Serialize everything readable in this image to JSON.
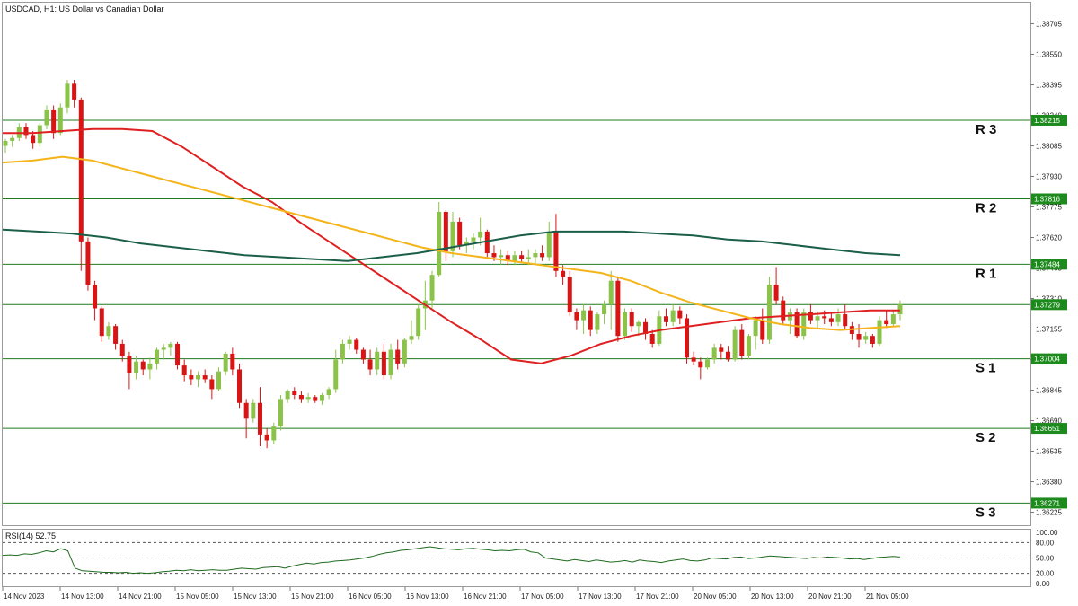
{
  "header": {
    "symbol_text": "USDCAD, H1:  US Dollar vs Canadian Dollar"
  },
  "rsi_panel": {
    "label": "RSI(14) 52.75"
  },
  "colors": {
    "bull": "#8bc34a",
    "bear": "#d81414",
    "level_line": "#1e7b1e",
    "badge": "#1d8a1d",
    "ma_fast": "#e02020",
    "ma_mid": "#f4b41a",
    "ma_slow": "#1b5e4a",
    "rsi_line": "#1f6b1f",
    "grid_border": "#9a9a9a"
  },
  "chart_data": [
    {
      "type": "candlestick",
      "title": "USDCAD, H1:  US Dollar vs Canadian Dollar",
      "x_tick_labels": [
        "14 Nov 2023",
        "14 Nov 13:00",
        "14 Nov 21:00",
        "15 Nov 05:00",
        "15 Nov 13:00",
        "15 Nov 21:00",
        "16 Nov 05:00",
        "16 Nov 13:00",
        "16 Nov 21:00",
        "17 Nov 05:00",
        "17 Nov 13:00",
        "17 Nov 21:00",
        "20 Nov 05:00",
        "20 Nov 13:00",
        "20 Nov 21:00",
        "21 Nov 05:00"
      ],
      "y_tick_labels": [
        "1.38705",
        "1.38550",
        "1.38395",
        "1.38240",
        "1.38085",
        "1.37930",
        "1.37775",
        "1.37620",
        "1.37465",
        "1.37310",
        "1.37155",
        "1.37000",
        "1.36845",
        "1.36690",
        "1.36535",
        "1.36380",
        "1.36225"
      ],
      "ylim": [
        1.36159,
        1.38812
      ],
      "levels": [
        {
          "name": "R 3",
          "value": 1.38215,
          "label": "1.38215"
        },
        {
          "name": "R 2",
          "value": 1.37816,
          "label": "1.37816"
        },
        {
          "name": "R 1",
          "value": 1.37484,
          "label": "1.37484"
        },
        {
          "name": "",
          "value": 1.37279,
          "label": "1.37279"
        },
        {
          "name": "S 1",
          "value": 1.37004,
          "label": "1.37004"
        },
        {
          "name": "S 2",
          "value": 1.36651,
          "label": "1.36651"
        },
        {
          "name": "S 3",
          "value": 1.36271,
          "label": "1.36271"
        }
      ],
      "ohlc": [
        [
          1.38085,
          1.3812,
          1.3805,
          1.3811
        ],
        [
          1.3811,
          1.3814,
          1.3808,
          1.38125
        ],
        [
          1.38125,
          1.382,
          1.3811,
          1.3818
        ],
        [
          1.3818,
          1.382,
          1.3812,
          1.3814
        ],
        [
          1.3814,
          1.3816,
          1.3807,
          1.381
        ],
        [
          1.381,
          1.382,
          1.3808,
          1.3819
        ],
        [
          1.3819,
          1.3829,
          1.3817,
          1.3827
        ],
        [
          1.3827,
          1.3829,
          1.3812,
          1.3815
        ],
        [
          1.3815,
          1.383,
          1.3814,
          1.3828
        ],
        [
          1.3828,
          1.3842,
          1.3825,
          1.384
        ],
        [
          1.384,
          1.3842,
          1.3828,
          1.3832
        ],
        [
          1.3832,
          1.3833,
          1.3745,
          1.376
        ],
        [
          1.376,
          1.3762,
          1.3735,
          1.3738
        ],
        [
          1.3738,
          1.374,
          1.372,
          1.3726
        ],
        [
          1.3726,
          1.3727,
          1.3709,
          1.3712
        ],
        [
          1.3712,
          1.3719,
          1.371,
          1.3717
        ],
        [
          1.3717,
          1.3718,
          1.3705,
          1.3708
        ],
        [
          1.3708,
          1.371,
          1.3699,
          1.3702
        ],
        [
          1.3702,
          1.3704,
          1.3685,
          1.3693
        ],
        [
          1.3693,
          1.3702,
          1.369,
          1.3699
        ],
        [
          1.3699,
          1.37,
          1.3692,
          1.3695
        ],
        [
          1.3695,
          1.3701,
          1.369,
          1.3698
        ],
        [
          1.3698,
          1.3706,
          1.3695,
          1.3705
        ],
        [
          1.3705,
          1.3708,
          1.37,
          1.3706
        ],
        [
          1.3706,
          1.3709,
          1.3702,
          1.3708
        ],
        [
          1.3708,
          1.3709,
          1.3695,
          1.3697
        ],
        [
          1.3697,
          1.37,
          1.3689,
          1.3692
        ],
        [
          1.3692,
          1.3695,
          1.3687,
          1.369
        ],
        [
          1.369,
          1.3694,
          1.3686,
          1.3692
        ],
        [
          1.3692,
          1.3695,
          1.3688,
          1.369
        ],
        [
          1.369,
          1.3692,
          1.368,
          1.3685
        ],
        [
          1.3685,
          1.3696,
          1.3684,
          1.3694
        ],
        [
          1.3694,
          1.3704,
          1.3692,
          1.3703
        ],
        [
          1.3703,
          1.3706,
          1.3692,
          1.3695
        ],
        [
          1.3695,
          1.3698,
          1.3675,
          1.3678
        ],
        [
          1.3678,
          1.368,
          1.366,
          1.367
        ],
        [
          1.367,
          1.368,
          1.3668,
          1.3678
        ],
        [
          1.3678,
          1.3686,
          1.3656,
          1.3662
        ],
        [
          1.3662,
          1.3665,
          1.3655,
          1.3659
        ],
        [
          1.3659,
          1.3668,
          1.3657,
          1.3666
        ],
        [
          1.3666,
          1.3682,
          1.3664,
          1.368
        ],
        [
          1.368,
          1.3685,
          1.3678,
          1.3684
        ],
        [
          1.3684,
          1.3686,
          1.368,
          1.3682
        ],
        [
          1.3682,
          1.3684,
          1.3678,
          1.368
        ],
        [
          1.368,
          1.3683,
          1.3678,
          1.3681
        ],
        [
          1.3681,
          1.3682,
          1.3678,
          1.3679
        ],
        [
          1.3679,
          1.3683,
          1.3677,
          1.3682
        ],
        [
          1.3682,
          1.3686,
          1.368,
          1.3685
        ],
        [
          1.3685,
          1.3705,
          1.3683,
          1.37
        ],
        [
          1.37,
          1.371,
          1.3698,
          1.3708
        ],
        [
          1.3708,
          1.3712,
          1.3705,
          1.371
        ],
        [
          1.371,
          1.3711,
          1.3703,
          1.3705
        ],
        [
          1.3705,
          1.3706,
          1.3698,
          1.37
        ],
        [
          1.37,
          1.3705,
          1.3692,
          1.3695
        ],
        [
          1.3695,
          1.3706,
          1.3692,
          1.3704
        ],
        [
          1.3704,
          1.3708,
          1.369,
          1.3692
        ],
        [
          1.3692,
          1.3708,
          1.369,
          1.3705
        ],
        [
          1.3705,
          1.371,
          1.3695,
          1.3698
        ],
        [
          1.3698,
          1.3711,
          1.3696,
          1.371
        ],
        [
          1.371,
          1.372,
          1.3708,
          1.3712
        ],
        [
          1.3712,
          1.3728,
          1.371,
          1.3726
        ],
        [
          1.3726,
          1.374,
          1.3715,
          1.373
        ],
        [
          1.373,
          1.3745,
          1.3726,
          1.3743
        ],
        [
          1.3743,
          1.378,
          1.3742,
          1.3775
        ],
        [
          1.3775,
          1.3776,
          1.375,
          1.3755
        ],
        [
          1.3755,
          1.3775,
          1.3752,
          1.377
        ],
        [
          1.377,
          1.3772,
          1.3756,
          1.3758
        ],
        [
          1.3758,
          1.3762,
          1.3754,
          1.376
        ],
        [
          1.376,
          1.3764,
          1.3756,
          1.3762
        ],
        [
          1.3762,
          1.3772,
          1.3758,
          1.3765
        ],
        [
          1.3765,
          1.3766,
          1.3752,
          1.3754
        ],
        [
          1.3754,
          1.3758,
          1.375,
          1.3752
        ],
        [
          1.3752,
          1.3756,
          1.3748,
          1.3753
        ],
        [
          1.3753,
          1.3755,
          1.3748,
          1.375
        ],
        [
          1.375,
          1.3755,
          1.3748,
          1.3753
        ],
        [
          1.3753,
          1.3755,
          1.3749,
          1.3751
        ],
        [
          1.3751,
          1.3756,
          1.3748,
          1.3752
        ],
        [
          1.3752,
          1.3756,
          1.3748,
          1.3754
        ],
        [
          1.3754,
          1.3758,
          1.375,
          1.3752
        ],
        [
          1.3752,
          1.377,
          1.375,
          1.3765
        ],
        [
          1.3765,
          1.3774,
          1.3742,
          1.3745
        ],
        [
          1.3745,
          1.3748,
          1.3738,
          1.3742
        ],
        [
          1.3742,
          1.3745,
          1.3722,
          1.3724
        ],
        [
          1.3724,
          1.3726,
          1.3715,
          1.372
        ],
        [
          1.372,
          1.3728,
          1.3713,
          1.3725
        ],
        [
          1.3725,
          1.3727,
          1.3712,
          1.3715
        ],
        [
          1.3715,
          1.3724,
          1.3713,
          1.3723
        ],
        [
          1.3723,
          1.373,
          1.3718,
          1.3728
        ],
        [
          1.3728,
          1.3745,
          1.3715,
          1.374
        ],
        [
          1.374,
          1.3742,
          1.3709,
          1.3712
        ],
        [
          1.3712,
          1.3726,
          1.371,
          1.3724
        ],
        [
          1.3724,
          1.3726,
          1.3714,
          1.3717
        ],
        [
          1.3717,
          1.372,
          1.3712,
          1.3719
        ],
        [
          1.3719,
          1.3721,
          1.371,
          1.3713
        ],
        [
          1.3713,
          1.3715,
          1.3706,
          1.3708
        ],
        [
          1.3708,
          1.3725,
          1.3707,
          1.3722
        ],
        [
          1.3722,
          1.3726,
          1.3717,
          1.3719
        ],
        [
          1.3719,
          1.3728,
          1.3717,
          1.3725
        ],
        [
          1.3725,
          1.3727,
          1.3718,
          1.3721
        ],
        [
          1.3721,
          1.3723,
          1.3698,
          1.3701
        ],
        [
          1.3701,
          1.3704,
          1.3697,
          1.3699
        ],
        [
          1.3699,
          1.3701,
          1.369,
          1.3696
        ],
        [
          1.3696,
          1.3701,
          1.3695,
          1.37
        ],
        [
          1.37,
          1.3708,
          1.3698,
          1.3706
        ],
        [
          1.3706,
          1.3708,
          1.37,
          1.3704
        ],
        [
          1.3704,
          1.3707,
          1.3699,
          1.37
        ],
        [
          1.37,
          1.3717,
          1.3699,
          1.3715
        ],
        [
          1.3715,
          1.3718,
          1.37,
          1.3702
        ],
        [
          1.3702,
          1.3713,
          1.37,
          1.3712
        ],
        [
          1.3712,
          1.3722,
          1.3705,
          1.372
        ],
        [
          1.372,
          1.3726,
          1.3708,
          1.371
        ],
        [
          1.371,
          1.3742,
          1.3708,
          1.3738
        ],
        [
          1.3738,
          1.3747,
          1.3728,
          1.373
        ],
        [
          1.373,
          1.3732,
          1.3718,
          1.372
        ],
        [
          1.372,
          1.3726,
          1.3713,
          1.3724
        ],
        [
          1.3724,
          1.3726,
          1.3711,
          1.3712
        ],
        [
          1.3712,
          1.3726,
          1.371,
          1.3724
        ],
        [
          1.3724,
          1.3728,
          1.3718,
          1.372
        ],
        [
          1.372,
          1.3724,
          1.3716,
          1.3722
        ],
        [
          1.3722,
          1.3725,
          1.3718,
          1.3721
        ],
        [
          1.3721,
          1.3724,
          1.3717,
          1.3719
        ],
        [
          1.3719,
          1.3726,
          1.3717,
          1.3723
        ],
        [
          1.3723,
          1.3728,
          1.3715,
          1.3717
        ],
        [
          1.3717,
          1.3719,
          1.371,
          1.3713
        ],
        [
          1.3713,
          1.3718,
          1.3706,
          1.371
        ],
        [
          1.371,
          1.3714,
          1.3708,
          1.3712
        ],
        [
          1.3712,
          1.3713,
          1.3706,
          1.3708
        ],
        [
          1.3708,
          1.3722,
          1.3707,
          1.372
        ],
        [
          1.372,
          1.3725,
          1.3716,
          1.3718
        ],
        [
          1.3718,
          1.3725,
          1.3717,
          1.3723
        ],
        [
          1.3723,
          1.373,
          1.372,
          1.3728
        ]
      ],
      "series": [
        {
          "color": "#e02020",
          "y": [
            1.3815,
            1.3815,
            1.3816,
            1.3817,
            1.3817,
            1.3816,
            1.3808,
            1.3798,
            1.3788,
            1.378,
            1.3769,
            1.3759,
            1.3749,
            1.3739,
            1.3729,
            1.3719,
            1.371,
            1.37,
            1.3698,
            1.3702,
            1.3708,
            1.3712,
            1.3715,
            1.3717,
            1.3719,
            1.3721,
            1.3722,
            1.3723,
            1.3724,
            1.3725,
            1.3725
          ]
        },
        {
          "color": "#f4b41a",
          "y": [
            1.38,
            1.3801,
            1.3803,
            1.3801,
            1.3797,
            1.3793,
            1.3789,
            1.3785,
            1.3781,
            1.3777,
            1.3773,
            1.3769,
            1.3765,
            1.3761,
            1.3757,
            1.3754,
            1.3752,
            1.375,
            1.3748,
            1.3746,
            1.3744,
            1.374,
            1.3734,
            1.3729,
            1.3725,
            1.3721,
            1.3718,
            1.3716,
            1.3715,
            1.3716,
            1.3717
          ]
        },
        {
          "color": "#1b5e4a",
          "y": [
            1.3766,
            1.3765,
            1.3764,
            1.3762,
            1.3759,
            1.3757,
            1.3755,
            1.3753,
            1.3752,
            1.3751,
            1.375,
            1.3752,
            1.3754,
            1.3757,
            1.376,
            1.3763,
            1.3765,
            1.3765,
            1.3765,
            1.3764,
            1.3763,
            1.3761,
            1.376,
            1.3758,
            1.3756,
            1.3754,
            1.3753
          ]
        }
      ]
    },
    {
      "type": "line",
      "title": "RSI(14) 52.75",
      "y_tick_labels": [
        "100.00",
        "80.00",
        "50.00",
        "20.00",
        "0.00"
      ],
      "levels": [
        80,
        50,
        20
      ],
      "ylim": [
        0,
        100
      ],
      "series": [
        {
          "name": "RSI(14)",
          "values": [
            55,
            56,
            55,
            58,
            57,
            60,
            64,
            62,
            68,
            64,
            30,
            25,
            24,
            23,
            22,
            22,
            21,
            22,
            20,
            21,
            20,
            21,
            23,
            24,
            26,
            25,
            27,
            25,
            26,
            27,
            26,
            26,
            28,
            30,
            29,
            28,
            31,
            32,
            33,
            30,
            34,
            37,
            40,
            38,
            41,
            42,
            44,
            45,
            46,
            48,
            50,
            53,
            57,
            60,
            62,
            65,
            66,
            68,
            70,
            72,
            70,
            68,
            67,
            66,
            68,
            69,
            67,
            66,
            64,
            65,
            64,
            66,
            67,
            62,
            60,
            50,
            48,
            46,
            44,
            47,
            45,
            43,
            46,
            44,
            42,
            43,
            45,
            42,
            46,
            44,
            43,
            41,
            44,
            46,
            48,
            45,
            44,
            46,
            50,
            49,
            48,
            51,
            52,
            49,
            50,
            52,
            54,
            53,
            52,
            51,
            50,
            49,
            51,
            50,
            52,
            51,
            50,
            48,
            49,
            47,
            49,
            51,
            52,
            53,
            52
          ]
        }
      ]
    }
  ]
}
